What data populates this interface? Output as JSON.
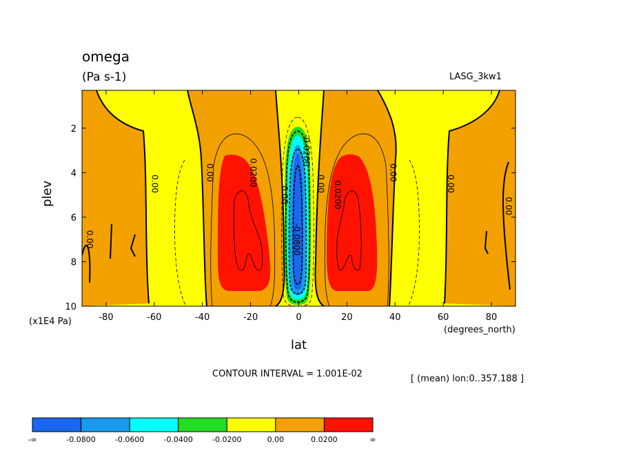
{
  "header": {
    "variable": "omega",
    "units": "(Pa s-1)",
    "dataset": "LASG_3kw1"
  },
  "axes": {
    "y_label": "plev",
    "y_units": "(x1E4 Pa)",
    "x_label": "lat",
    "x_units": "(degrees_north)"
  },
  "footer": {
    "contour_interval": "CONTOUR INTERVAL = 1.001E-02",
    "mean_info": "[ (mean) lon:0..357.188 ]"
  },
  "colorbar": {
    "colors": [
      "#1a66ee",
      "#1a9aec",
      "#00ffff",
      "#22dd22",
      "#ffff00",
      "#f2a100",
      "#ff1200"
    ],
    "labels": [
      "-∞",
      "-0.0800",
      "-0.0600",
      "-0.0400",
      "-0.0200",
      "0.00",
      "0.0200",
      "∞"
    ]
  },
  "chart_data": {
    "type": "heatmap",
    "title": "omega",
    "subtitle": "(Pa s-1)",
    "xlabel": "lat",
    "ylabel": "plev",
    "xlim": [
      -90,
      90
    ],
    "ylim": [
      10,
      0.3
    ],
    "x_ticks": [
      -80,
      -60,
      -40,
      -20,
      0,
      20,
      40,
      60,
      80
    ],
    "y_ticks": [
      2,
      4,
      6,
      8,
      10
    ],
    "contour_levels": [
      -0.08,
      -0.06,
      -0.04,
      -0.02,
      0.0,
      0.02
    ],
    "contour_labels": [
      {
        "text": "0.00",
        "lat": -88,
        "plev": 7
      },
      {
        "text": "0.00",
        "lat": -61,
        "plev": 4.5
      },
      {
        "text": "0.00",
        "lat": -38,
        "plev": 4
      },
      {
        "text": "0.0200",
        "lat": -20,
        "plev": 4
      },
      {
        "text": "0.00",
        "lat": -7,
        "plev": 5
      },
      {
        "text": "-0.0800",
        "lat": -2,
        "plev": 7
      },
      {
        "text": "-0.0200",
        "lat": 2,
        "plev": 3
      },
      {
        "text": "0.00",
        "lat": 8,
        "plev": 4.5
      },
      {
        "text": "0.0200",
        "lat": 15,
        "plev": 5
      },
      {
        "text": "0.00",
        "lat": 38,
        "plev": 4
      },
      {
        "text": "0.00",
        "lat": 62,
        "plev": 4.5
      },
      {
        "text": "0.00",
        "lat": 86,
        "plev": 5.5
      }
    ],
    "features": [
      {
        "band": "0.00 to 0.0200",
        "lat_range": [
          -90,
          -62
        ],
        "plev_range": [
          0.3,
          10
        ]
      },
      {
        "band": "0.00 to 0.0200",
        "lat_range": [
          -45,
          -7
        ],
        "plev_range": [
          0.3,
          10
        ]
      },
      {
        "band": "0.0200 to inf",
        "lat_range": [
          -35,
          -13
        ],
        "plev_range": [
          3.2,
          9.5
        ],
        "center": [
          -24,
          6.5
        ]
      },
      {
        "band": "-0.0800 to -0.0200",
        "lat_range": [
          -6,
          6
        ],
        "plev_range": [
          1.8,
          10
        ],
        "center": [
          0,
          6
        ]
      },
      {
        "band": "0.0200 to inf",
        "lat_range": [
          13,
          35
        ],
        "plev_range": [
          3.2,
          9.5
        ],
        "center": [
          24,
          6.5
        ]
      },
      {
        "band": "0.00 to 0.0200",
        "lat_range": [
          7,
          44
        ],
        "plev_range": [
          0.3,
          10
        ]
      },
      {
        "band": "0.00 to 0.0200",
        "lat_range": [
          63,
          90
        ],
        "plev_range": [
          0.3,
          10
        ]
      }
    ]
  }
}
